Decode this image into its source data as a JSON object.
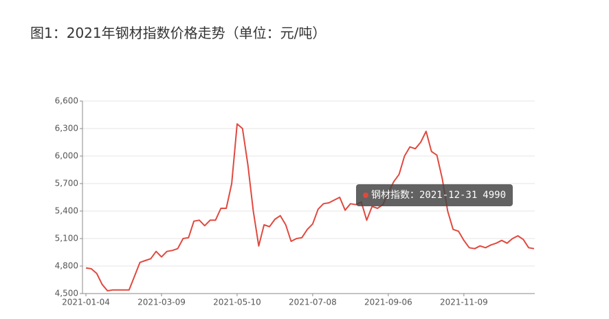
{
  "chart_data": {
    "type": "line",
    "title": "图1：2021年钢材指数价格走势（单位：元/吨）",
    "categories": [
      "2021-01-04",
      null,
      null,
      null,
      null,
      null,
      null,
      null,
      null,
      null,
      null,
      null,
      null,
      null,
      "2021-03-09",
      null,
      null,
      null,
      null,
      null,
      null,
      null,
      null,
      null,
      null,
      null,
      null,
      null,
      "2021-05-10",
      null,
      null,
      null,
      null,
      null,
      null,
      null,
      null,
      null,
      null,
      null,
      null,
      null,
      "2021-07-08",
      null,
      null,
      null,
      null,
      null,
      null,
      null,
      null,
      null,
      null,
      null,
      null,
      null,
      "2021-09-06",
      null,
      null,
      null,
      null,
      null,
      null,
      null,
      null,
      null,
      null,
      null,
      null,
      null,
      "2021-11-09",
      null,
      null,
      null,
      null,
      null,
      null,
      null,
      null,
      null,
      null,
      null,
      null,
      "2021-12-31"
    ],
    "series": [
      {
        "name": "钢材指数",
        "color": "#e0483e",
        "values": [
          4780,
          4770,
          4720,
          4600,
          4530,
          4540,
          4540,
          4540,
          4540,
          4690,
          4840,
          4860,
          4880,
          4960,
          4900,
          4960,
          4970,
          4990,
          5100,
          5110,
          5290,
          5300,
          5240,
          5300,
          5300,
          5430,
          5430,
          5700,
          6350,
          6300,
          5900,
          5400,
          5020,
          5250,
          5230,
          5310,
          5350,
          5250,
          5070,
          5100,
          5110,
          5200,
          5260,
          5420,
          5480,
          5490,
          5520,
          5550,
          5410,
          5480,
          5470,
          5500,
          5300,
          5450,
          5430,
          5470,
          5600,
          5720,
          5800,
          6000,
          6100,
          6080,
          6150,
          6270,
          6050,
          6010,
          5750,
          5400,
          5200,
          5180,
          5080,
          5000,
          4990,
          5020,
          5000,
          5030,
          5050,
          5080,
          5050,
          5100,
          5130,
          5090,
          5000,
          4990
        ]
      }
    ],
    "ylim": [
      4500,
      6600
    ],
    "yticks": [
      {
        "value": 4500,
        "label": "4,500"
      },
      {
        "value": 4800,
        "label": "4,800"
      },
      {
        "value": 5100,
        "label": "5,100"
      },
      {
        "value": 5400,
        "label": "5,400"
      },
      {
        "value": 5700,
        "label": "5,700"
      },
      {
        "value": 6000,
        "label": "6,000"
      },
      {
        "value": 6300,
        "label": "6,300"
      },
      {
        "value": 6600,
        "label": "6,600"
      }
    ],
    "grid": true
  }
}
